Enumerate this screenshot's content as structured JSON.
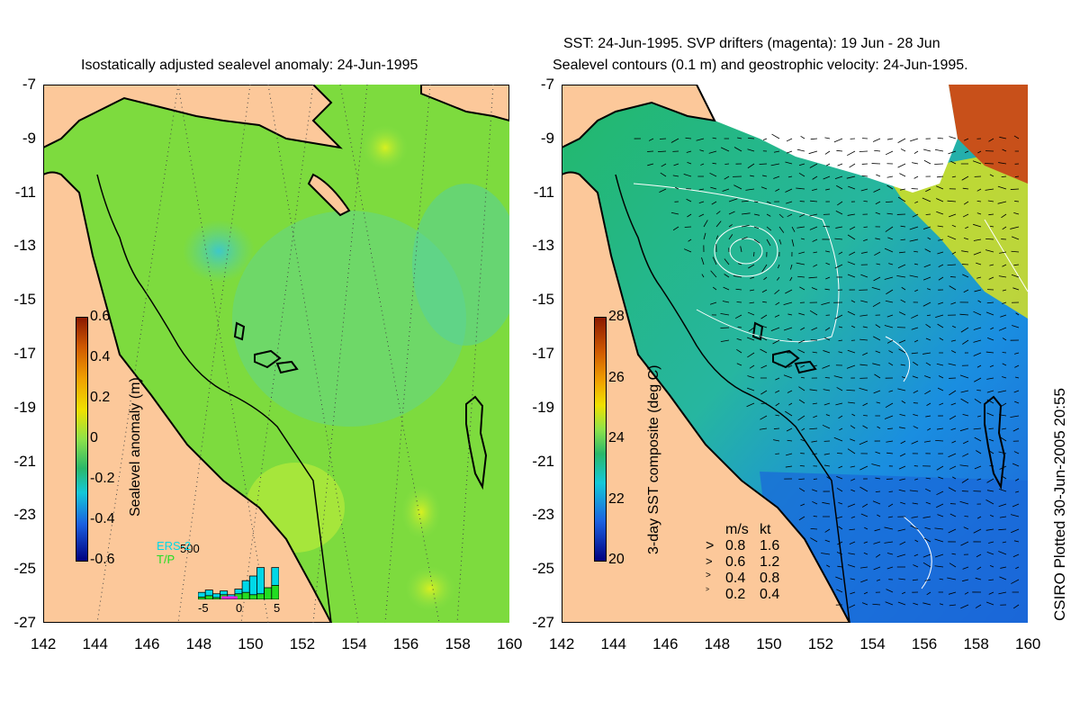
{
  "left_panel": {
    "title": "Isostatically adjusted sealevel anomaly: 24-Jun-1995",
    "colorbar": {
      "label": "Sealevel anomaly (m)",
      "ticks": [
        "0.6",
        "0.4",
        "0.2",
        "0",
        "-0.2",
        "-0.4",
        "-0.6"
      ]
    },
    "histogram": {
      "max_label": "500",
      "x_ticks": [
        "-5",
        "0",
        "5"
      ],
      "legend": [
        {
          "label": "ERS-2",
          "color": "#00d8e8"
        },
        {
          "label": "T/P",
          "color": "#22dd22"
        }
      ],
      "ers2_bars": [
        0.15,
        0.2,
        0.12,
        0.18,
        0.1,
        0.22,
        0.4,
        0.5,
        0.68,
        0.2,
        0.68
      ],
      "tp_bars": [
        0.05,
        0.08,
        0.04,
        0.1,
        0.06,
        0.12,
        0.15,
        0.1,
        0.12,
        0.25,
        0.3
      ]
    }
  },
  "right_panel": {
    "title_line1": "SST: 24-Jun-1995. SVP drifters (magenta): 19 Jun - 28 Jun",
    "title_line2": "Sealevel contours (0.1 m) and geostrophic velocity: 24-Jun-1995.",
    "colorbar": {
      "label": "3-day SST composite (deg C)",
      "ticks": [
        "28",
        "26",
        "24",
        "22",
        "20"
      ]
    },
    "velocity_legend": {
      "headers": [
        "m/s",
        "kt"
      ],
      "rows": [
        [
          "0.8",
          "1.6"
        ],
        [
          "0.6",
          "1.2"
        ],
        [
          "0.4",
          "0.8"
        ],
        [
          "0.2",
          "0.4"
        ]
      ]
    }
  },
  "axes": {
    "x_ticks": [
      "142",
      "144",
      "146",
      "148",
      "150",
      "152",
      "154",
      "156",
      "158",
      "160"
    ],
    "y_ticks": [
      "-7",
      "-9",
      "-11",
      "-13",
      "-15",
      "-17",
      "-19",
      "-21",
      "-23",
      "-25",
      "-27"
    ],
    "lon_range": [
      142,
      160
    ],
    "lat_range": [
      -27,
      -7
    ]
  },
  "credit": "CSIRO Plotted 30-Jun-2005 20:55",
  "colors": {
    "land": "#fcc89a",
    "sea_anomaly": "#66d93a",
    "sea_sst": "#2fbf8a"
  }
}
